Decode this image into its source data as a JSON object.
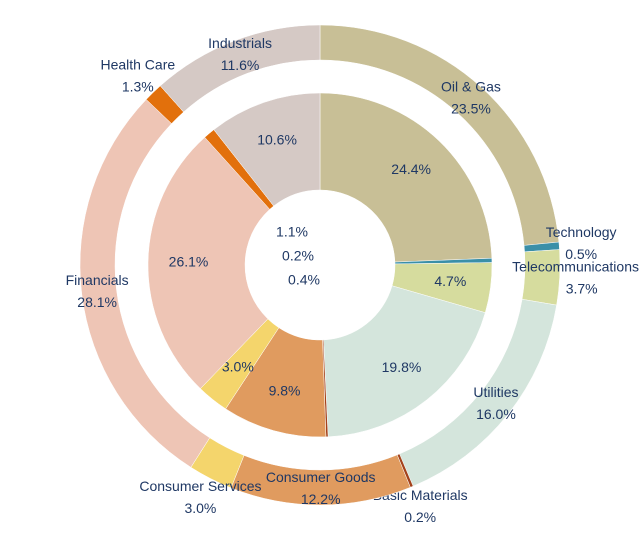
{
  "chart_data": {
    "type": "donut",
    "categories": [
      "Oil & Gas",
      "Technology",
      "Telecommunications",
      "Utilities",
      "Basic Materials",
      "Consumer Goods",
      "Consumer Services",
      "Financials",
      "Health Care",
      "Industrials"
    ],
    "colors": [
      "#c8bf96",
      "#3a8fa8",
      "#d6dc9e",
      "#d4e5dc",
      "#a3431c",
      "#e09b5f",
      "#f4d56c",
      "#eec5b5",
      "#e2700c",
      "#d5c9c5"
    ],
    "rings": [
      {
        "values": [
          23.5,
          0.5,
          3.7,
          16.0,
          0.2,
          12.2,
          3.0,
          28.1,
          1.3,
          11.6
        ],
        "value_labels": [
          "23.5%",
          "0.5%",
          "3.7%",
          "16.0%",
          "0.2%",
          "12.2%",
          "3.0%",
          "28.1%",
          "1.3%",
          "11.6%"
        ]
      },
      {
        "values": [
          24.4,
          0.4,
          4.7,
          19.8,
          0.2,
          9.8,
          3.0,
          26.1,
          1.1,
          10.6
        ],
        "value_labels": [
          "24.4%",
          "0.4%",
          "4.7%",
          "19.8%",
          "0.2%",
          "9.8%",
          "3.0%",
          "26.1%",
          "1.1%",
          "10.6%"
        ]
      }
    ]
  }
}
